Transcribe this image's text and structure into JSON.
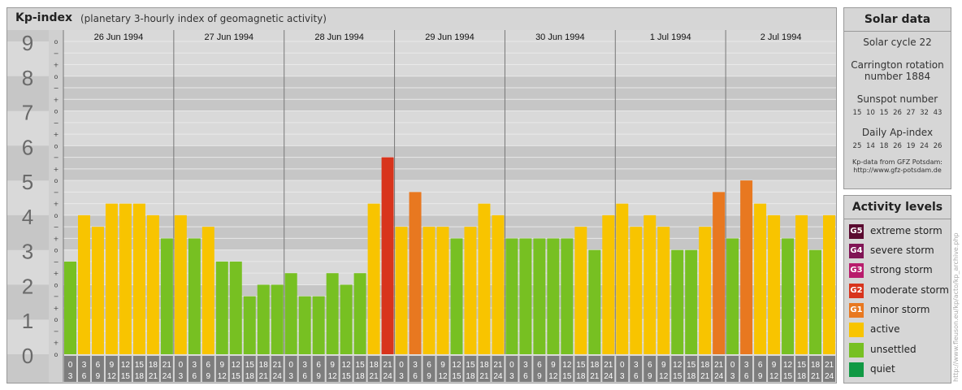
{
  "title": "Kp-index",
  "subtitle": "(planetary 3-hourly index of geomagnetic activity)",
  "chart_data": {
    "type": "bar",
    "title": "Kp-index",
    "subtitle": "(planetary 3-hourly index of geomagnetic activity)",
    "ylim": [
      0,
      9
    ],
    "y_ticks": [
      "0",
      "1",
      "2",
      "3",
      "4",
      "5",
      "6",
      "7",
      "8",
      "9"
    ],
    "minor_ticks": [
      "o",
      "+",
      "−",
      "o",
      "+",
      "−",
      "o",
      "+",
      "−",
      "o",
      "+",
      "−",
      "o",
      "+",
      "−",
      "o",
      "+",
      "−",
      "o",
      "+",
      "−",
      "o",
      "+",
      "−",
      "o",
      "+",
      "−",
      "o"
    ],
    "days": [
      "26 Jun 1994",
      "27 Jun 1994",
      "28 Jun 1994",
      "29 Jun 1994",
      "30 Jun 1994",
      "1 Jul 1994",
      "2 Jul 1994"
    ],
    "intervals_top": [
      "0",
      "3",
      "6",
      "9",
      "12",
      "15",
      "18",
      "21"
    ],
    "intervals_bottom": [
      "3",
      "6",
      "9",
      "12",
      "15",
      "18",
      "21",
      "24"
    ],
    "values": [
      2.667,
      4.0,
      3.667,
      4.333,
      4.333,
      4.333,
      4.0,
      3.333,
      4.0,
      3.333,
      3.667,
      2.667,
      2.667,
      1.667,
      2.0,
      2.0,
      2.333,
      1.667,
      1.667,
      2.333,
      2.0,
      2.333,
      4.333,
      5.667,
      3.667,
      4.667,
      3.667,
      3.667,
      3.333,
      3.667,
      4.333,
      4.0,
      3.333,
      3.333,
      3.333,
      3.333,
      3.333,
      3.667,
      3.0,
      4.0,
      4.333,
      3.667,
      4.0,
      3.667,
      3.0,
      3.0,
      3.667,
      4.667,
      3.333,
      5.0,
      4.333,
      4.0,
      3.333,
      4.0,
      3.0,
      4.0
    ],
    "colors": {
      "quiet": "#119944",
      "unsettled": "#77c022",
      "active": "#f8c400",
      "minor_storm": "#e87820",
      "moderate_storm": "#d8341c",
      "strong_storm": "#b81c6c",
      "severe_storm": "#801455",
      "extreme_storm": "#5a0a30"
    }
  },
  "solar": {
    "header": "Solar data",
    "cycle": "Solar cycle 22",
    "rotation_line1": "Carrington rotation",
    "rotation_line2": "number 1884",
    "sunspot_label": "Sunspot number",
    "sunspot_values": "15 10 15 26 27 32 43",
    "ap_label": "Daily Ap-index",
    "ap_values": "25 14 18 26 19 24 26",
    "source_line1": "Kp-data from GFZ Potsdam:",
    "source_line2": "http://www.gfz-potsdam.de"
  },
  "activity": {
    "header": "Activity levels",
    "items": [
      {
        "badge": "G5",
        "label": "extreme storm",
        "color": "#5a0a30"
      },
      {
        "badge": "G4",
        "label": "severe storm",
        "color": "#801455"
      },
      {
        "badge": "G3",
        "label": "strong storm",
        "color": "#b81c6c"
      },
      {
        "badge": "G2",
        "label": "moderate storm",
        "color": "#d8341c"
      },
      {
        "badge": "G1",
        "label": "minor storm",
        "color": "#e87820"
      },
      {
        "badge": "",
        "label": "active",
        "color": "#f8c400"
      },
      {
        "badge": "",
        "label": "unsettled",
        "color": "#77c022"
      },
      {
        "badge": "",
        "label": "quiet",
        "color": "#119944"
      }
    ]
  },
  "credit": "http://www.fleuson.eu/kp/acto/kp_archive.php"
}
